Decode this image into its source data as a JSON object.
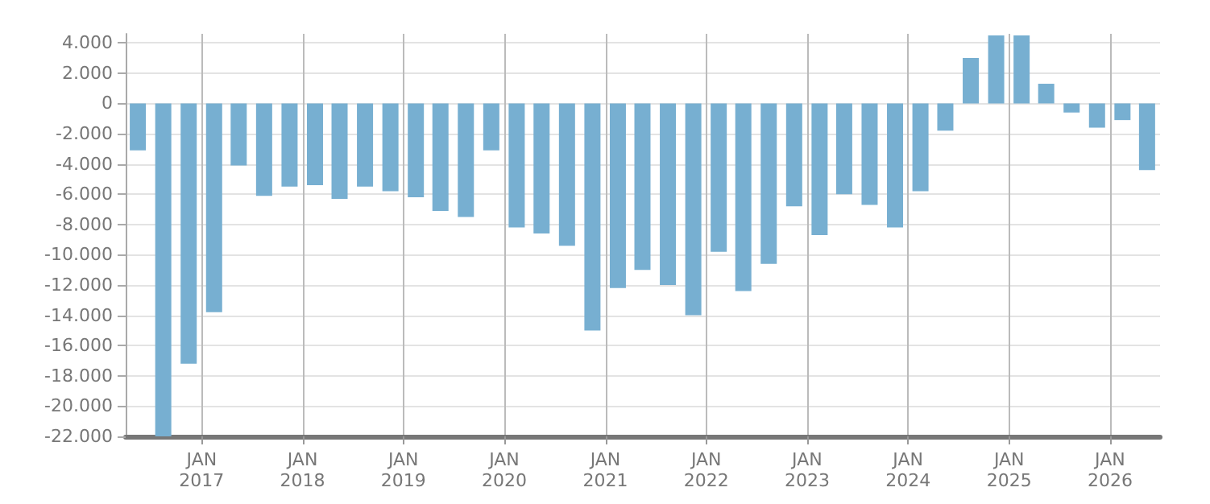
{
  "chart_data": {
    "type": "bar",
    "color": "#77afd1",
    "x": [
      "2016-05-15",
      "2016-08-15",
      "2016-11-15",
      "2017-02-15",
      "2017-05-15",
      "2017-08-15",
      "2017-11-15",
      "2018-02-15",
      "2018-05-15",
      "2018-08-15",
      "2018-11-15",
      "2019-02-15",
      "2019-05-15",
      "2019-08-15",
      "2019-11-15",
      "2020-02-15",
      "2020-05-15",
      "2020-08-15",
      "2020-11-15",
      "2021-02-15",
      "2021-05-15",
      "2021-08-15",
      "2021-11-15",
      "2022-02-15",
      "2022-05-15",
      "2022-08-15",
      "2022-11-15",
      "2023-02-15",
      "2023-05-15",
      "2023-08-15",
      "2023-11-15",
      "2024-02-15",
      "2024-05-15",
      "2024-08-15",
      "2024-11-15",
      "2025-02-15",
      "2025-05-15",
      "2025-08-15",
      "2025-11-15",
      "2026-02-15",
      "2026-05-15"
    ],
    "values": [
      -3100,
      -22000,
      -17200,
      -13800,
      -4100,
      -6100,
      -5500,
      -5400,
      -6300,
      -5500,
      -5800,
      -6200,
      -7100,
      -7500,
      -3100,
      -8200,
      -8600,
      -9400,
      -15000,
      -12200,
      -11000,
      -12000,
      -14000,
      -9800,
      -12400,
      -10600,
      -6800,
      -8700,
      -6000,
      -6700,
      -8200,
      -5800,
      -1800,
      3000,
      4500,
      4500,
      1300,
      -600,
      -1600,
      -1100,
      -4400
    ],
    "xlim": [
      "2016-04",
      "2026-07"
    ],
    "xticks": [
      {
        "value": "2017-01",
        "label": "JAN\n2017"
      },
      {
        "value": "2018-01",
        "label": "JAN\n2018"
      },
      {
        "value": "2019-01",
        "label": "JAN\n2019"
      },
      {
        "value": "2020-01",
        "label": "JAN\n2020"
      },
      {
        "value": "2021-01",
        "label": "JAN\n2021"
      },
      {
        "value": "2022-01",
        "label": "JAN\n2022"
      },
      {
        "value": "2023-01",
        "label": "JAN\n2023"
      },
      {
        "value": "2024-01",
        "label": "JAN\n2024"
      },
      {
        "value": "2025-01",
        "label": "JAN\n2025"
      },
      {
        "value": "2026-01",
        "label": "JAN\n2026"
      }
    ],
    "ylim": [
      -22000,
      4600
    ],
    "yticks": [
      {
        "value": 4000,
        "label": "4.000"
      },
      {
        "value": 2000,
        "label": "2.000"
      },
      0,
      {
        "value": -2000,
        "label": "-2.000"
      },
      {
        "value": -4000,
        "label": "-4.000"
      },
      {
        "value": -6000,
        "label": "-6.000"
      },
      {
        "value": -8000,
        "label": "-8.000"
      },
      {
        "value": -10000,
        "label": "-10.000"
      },
      {
        "value": -12000,
        "label": "-12.000"
      },
      {
        "value": -14000,
        "label": "-14.000"
      },
      {
        "value": -16000,
        "label": "-16.000"
      },
      {
        "value": -18000,
        "label": "-18.000"
      },
      {
        "value": -20000,
        "label": "-20.000"
      },
      {
        "value": -22000,
        "label": "-22.000"
      }
    ],
    "grid": true
  }
}
